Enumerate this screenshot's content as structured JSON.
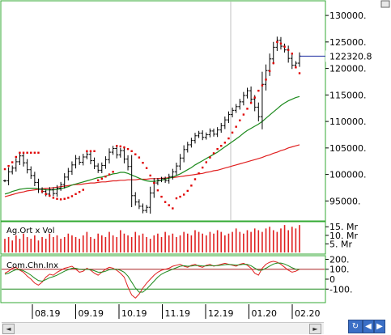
{
  "colors": {
    "price": "#000000",
    "psar": "#e00000",
    "ma_short": "#1d8a1d",
    "ma_long": "#e02020",
    "volume": "#e02020",
    "cci": "#e02020",
    "cci_signal": "#1d8a1d",
    "panel_border": "#33aa33",
    "last_price_line": "#1a2aa0",
    "ref_line": "#aa2222"
  },
  "chart_data": [
    {
      "type": "line",
      "panel": "price",
      "x_ticks": [
        "08.19",
        "09.19",
        "10.19",
        "11.19",
        "12.19",
        "01.20",
        "02.20"
      ],
      "y_ticks": [
        "95000.",
        "100000.",
        "105000.",
        "110000.",
        "115000.",
        "120000.",
        "125000.",
        "130000."
      ],
      "ylim": [
        92000,
        132000
      ],
      "last_value_label": "122320.8",
      "grid": "vertical line at 12.19",
      "series_close": [
        98800,
        100500,
        101200,
        102400,
        103500,
        102200,
        100900,
        99800,
        98500,
        97200,
        96800,
        96300,
        97100,
        96400,
        97400,
        98100,
        99500,
        100600,
        101800,
        103000,
        102300,
        103300,
        103800,
        102600,
        101600,
        100800,
        101700,
        102800,
        104200,
        104900,
        103700,
        104500,
        102900,
        101500,
        96000,
        94800,
        94000,
        93200,
        93800,
        96500,
        98400,
        98900,
        99200,
        98800,
        99600,
        100500,
        101600,
        103100,
        104700,
        105600,
        106400,
        107300,
        107800,
        107000,
        107500,
        108200,
        107600,
        108400,
        109200,
        110300,
        111300,
        112100,
        112800,
        113700,
        114900,
        115800,
        114200,
        112700,
        110900,
        117000,
        119600,
        121800,
        124000,
        125300,
        124200,
        123500,
        121900,
        120600,
        121000,
        122320.8
      ],
      "psar_points": [
        101000,
        101600,
        102300,
        103300,
        104100,
        104100,
        104100,
        104100,
        104100,
        104100,
        96800,
        96300,
        96000,
        95600,
        95400,
        95300,
        95400,
        95600,
        95900,
        96300,
        96700,
        97100,
        104400,
        104400,
        104400,
        98900,
        99200,
        99600,
        100000,
        100500,
        105400,
        105300,
        105100,
        104800,
        104400,
        103800,
        103200,
        102200,
        101200,
        99800,
        98400,
        97000,
        95800,
        94800,
        94200,
        93600,
        95500,
        95800,
        96200,
        96900,
        97900,
        99100,
        100200,
        101300,
        102300,
        103200,
        104000,
        104800,
        105400,
        106000,
        106800,
        107900,
        109000,
        110200,
        111300,
        112400,
        113500,
        114500,
        115800,
        116800,
        117900,
        119500,
        121000,
        125000,
        124700,
        124100,
        123500,
        122800,
        120200,
        119100
      ],
      "ma_short": [
        96300,
        96500,
        96800,
        97000,
        97200,
        97300,
        97400,
        97400,
        97400,
        97300,
        97200,
        97100,
        97100,
        97100,
        97200,
        97300,
        97500,
        97700,
        98000,
        98200,
        98400,
        98600,
        98800,
        99000,
        99200,
        99400,
        99500,
        99700,
        99900,
        100100,
        100200,
        100400,
        100400,
        100200,
        99900,
        99600,
        99300,
        99000,
        98800,
        98700,
        98700,
        98800,
        98900,
        99100,
        99300,
        99500,
        99800,
        100100,
        100500,
        100900,
        101300,
        101800,
        102200,
        102600,
        103000,
        103400,
        103800,
        104200,
        104700,
        105200,
        105700,
        106200,
        106700,
        107200,
        107800,
        108300,
        108700,
        109100,
        109500,
        110000,
        110600,
        111200,
        111800,
        112400,
        113000,
        113500,
        113900,
        114200,
        114500,
        114700
      ],
      "ma_long": [
        95800,
        96000,
        96200,
        96400,
        96600,
        96700,
        96900,
        97000,
        97100,
        97200,
        97300,
        97400,
        97400,
        97500,
        97600,
        97700,
        97800,
        97900,
        98000,
        98100,
        98100,
        98200,
        98300,
        98400,
        98400,
        98500,
        98600,
        98600,
        98700,
        98800,
        98800,
        98900,
        98900,
        99000,
        99000,
        99000,
        99100,
        99100,
        99100,
        99200,
        99200,
        99200,
        99300,
        99300,
        99400,
        99400,
        99500,
        99600,
        99700,
        99800,
        99900,
        100000,
        100100,
        100200,
        100400,
        100500,
        100700,
        100800,
        101000,
        101200,
        101400,
        101600,
        101800,
        102000,
        102200,
        102400,
        102600,
        102800,
        103000,
        103200,
        103500,
        103700,
        104000,
        104200,
        104500,
        104700,
        105000,
        105200,
        105400,
        105600
      ]
    },
    {
      "type": "bar",
      "panel": "volume",
      "title": "Ag.Ort x Vol",
      "y_ticks": [
        "5. Mr",
        "10. Mr",
        "15. Mr"
      ],
      "ylim": [
        0,
        17
      ],
      "values": [
        8,
        9,
        7,
        10,
        8,
        11,
        9,
        8,
        10,
        7,
        9,
        8,
        11,
        9,
        10,
        8,
        9,
        11,
        10,
        9,
        8,
        10,
        12,
        9,
        8,
        11,
        10,
        9,
        12,
        10,
        9,
        13,
        11,
        10,
        9,
        12,
        10,
        11,
        9,
        8,
        10,
        11,
        9,
        12,
        10,
        11,
        9,
        10,
        12,
        11,
        10,
        13,
        12,
        11,
        10,
        12,
        11,
        13,
        12,
        10,
        11,
        12,
        14,
        12,
        11,
        13,
        12,
        14,
        13,
        12,
        14,
        15,
        13,
        12,
        14,
        16,
        13,
        15,
        14,
        16
      ]
    },
    {
      "type": "line",
      "panel": "oscillator",
      "title": "Com.Chn.Inx",
      "y_ticks": [
        "-100.",
        "0",
        "100.",
        "200."
      ],
      "ylim": [
        -220,
        220
      ],
      "reference_lines": [
        100,
        -100
      ],
      "series": [
        {
          "values": [
            60,
            80,
            110,
            120,
            90,
            70,
            30,
            0,
            -40,
            -60,
            -30,
            20,
            50,
            40,
            70,
            90,
            110,
            120,
            130,
            100,
            70,
            80,
            110,
            90,
            60,
            40,
            70,
            100,
            120,
            110,
            90,
            60,
            20,
            -80,
            -160,
            -190,
            -150,
            -90,
            -40,
            0,
            40,
            70,
            90,
            100,
            110,
            130,
            140,
            150,
            130,
            120,
            140,
            150,
            130,
            120,
            140,
            150,
            130,
            140,
            150,
            160,
            150,
            140,
            130,
            150,
            160,
            140,
            110,
            60,
            40,
            110,
            150,
            170,
            180,
            170,
            150,
            120,
            90,
            70,
            80,
            100
          ]
        },
        {
          "values": [
            50,
            60,
            80,
            95,
            95,
            85,
            65,
            40,
            10,
            -15,
            -20,
            -5,
            15,
            25,
            40,
            60,
            80,
            95,
            110,
            110,
            100,
            95,
            100,
            95,
            85,
            70,
            70,
            80,
            95,
            100,
            100,
            90,
            70,
            30,
            -30,
            -90,
            -130,
            -130,
            -100,
            -60,
            -20,
            20,
            50,
            70,
            85,
            100,
            115,
            130,
            135,
            130,
            132,
            138,
            138,
            132,
            134,
            138,
            135,
            136,
            140,
            146,
            148,
            146,
            142,
            144,
            150,
            148,
            135,
            112,
            90,
            92,
            110,
            132,
            152,
            162,
            162,
            152,
            135,
            115,
            100,
            98
          ]
        }
      ]
    }
  ],
  "time_axis": {
    "labels": [
      "08.19",
      "09.19",
      "10.19",
      "11.19",
      "12.19",
      "01.20",
      "02.20"
    ]
  },
  "scrollbar": {
    "left_arrow": "◄",
    "right_arrow": "►"
  },
  "nav": {
    "refresh_icon": "refresh-icon",
    "prev_icon": "left-arrow-icon",
    "next_icon": "right-arrow-icon"
  }
}
